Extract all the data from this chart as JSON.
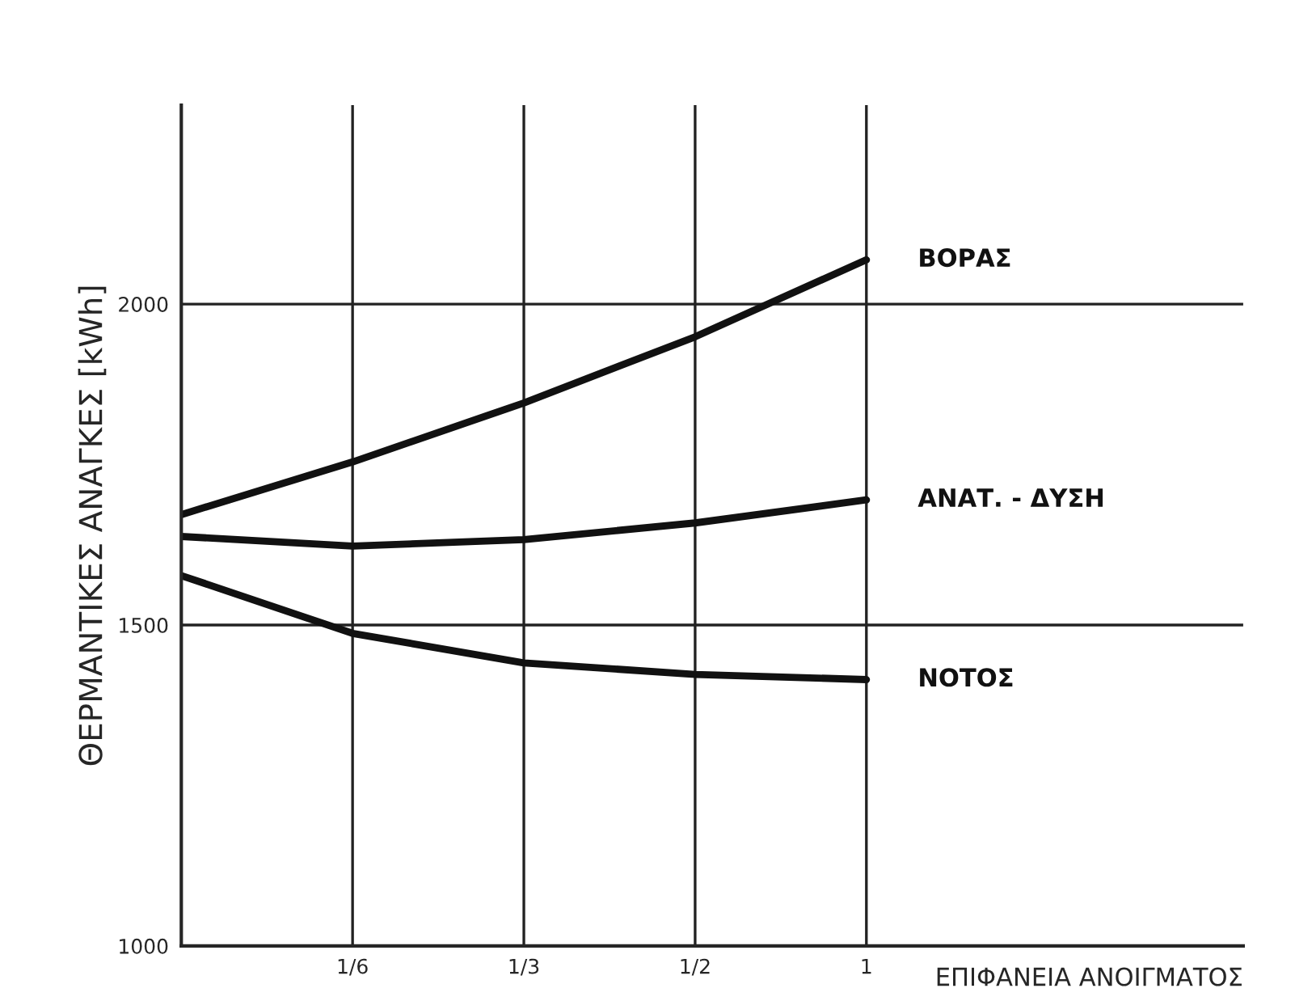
{
  "chart_data": {
    "type": "line",
    "xlabel": "ΕΠΙΦΑΝΕΙΑ ΑΝΟΙΓΜΑΤΟΣ",
    "ylabel": "ΘΕΡΜΑΝΤΙΚΕΣ ΑΝΑΓΚΕΣ [kWh]",
    "categories": [
      null,
      "1/6",
      "1/3",
      "1/2",
      "1"
    ],
    "series": [
      {
        "name": "ΒΟΡΑΣ",
        "color": "#111111",
        "values": [
          1672,
          1754,
          1846,
          1949,
          2069
        ]
      },
      {
        "name": "ΑΝΑΤ. - ΔΥΣΗ",
        "color": "#111111",
        "values": [
          1638,
          1623,
          1633,
          1659,
          1695
        ]
      },
      {
        "name": "ΝΟΤΟΣ",
        "color": "#111111",
        "values": [
          1577,
          1487,
          1441,
          1423,
          1415
        ]
      }
    ],
    "ylim": [
      1000,
      2310
    ],
    "yticks": [
      1000,
      1500,
      2000
    ],
    "grid": true,
    "legend": false,
    "marker": "none",
    "line_style": "solid"
  }
}
